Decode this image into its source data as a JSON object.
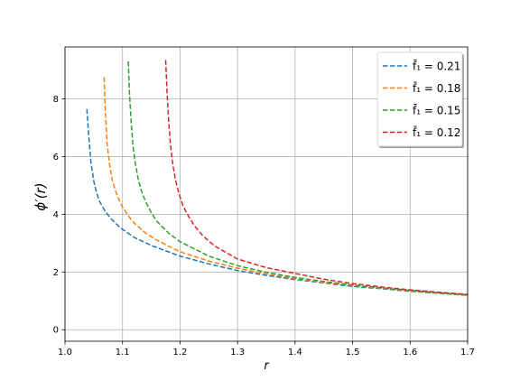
{
  "chart_data": {
    "type": "line",
    "title": "",
    "xlabel": "r",
    "ylabel": "ϕ′(r)",
    "xlim": [
      1.0,
      1.7
    ],
    "ylim": [
      -0.4,
      9.8
    ],
    "xticks": [
      1.0,
      1.1,
      1.2,
      1.3,
      1.4,
      1.5,
      1.6,
      1.7
    ],
    "xtick_labels": [
      "1.0",
      "1.1",
      "1.2",
      "1.3",
      "1.4",
      "1.5",
      "1.6",
      "1.7"
    ],
    "yticks": [
      0,
      2,
      4,
      6,
      8
    ],
    "ytick_labels": [
      "0",
      "2",
      "4",
      "6",
      "8"
    ],
    "grid": true,
    "legend_position": "top-right",
    "line_style": "dashed",
    "series": [
      {
        "name": "f̄₁ = 0.21",
        "color": "#1f77b4",
        "x": [
          1.038,
          1.041,
          1.045,
          1.05,
          1.055,
          1.06,
          1.07,
          1.08,
          1.09,
          1.1,
          1.12,
          1.15,
          1.2,
          1.25,
          1.3,
          1.35,
          1.4,
          1.45,
          1.5,
          1.55,
          1.6,
          1.65,
          1.7
        ],
        "y": [
          7.65,
          6.8,
          5.8,
          5.15,
          4.75,
          4.45,
          4.1,
          3.85,
          3.65,
          3.48,
          3.2,
          2.92,
          2.55,
          2.28,
          2.05,
          1.88,
          1.74,
          1.62,
          1.5,
          1.42,
          1.33,
          1.26,
          1.19
        ]
      },
      {
        "name": "f̄₁ = 0.18",
        "color": "#ff7f0e",
        "x": [
          1.068,
          1.07,
          1.073,
          1.077,
          1.082,
          1.088,
          1.095,
          1.1,
          1.11,
          1.12,
          1.14,
          1.16,
          1.2,
          1.25,
          1.3,
          1.35,
          1.4,
          1.45,
          1.5,
          1.55,
          1.6,
          1.65,
          1.7
        ],
        "y": [
          8.75,
          7.6,
          6.5,
          5.8,
          5.2,
          4.8,
          4.45,
          4.25,
          3.95,
          3.7,
          3.35,
          3.1,
          2.7,
          2.38,
          2.13,
          1.93,
          1.77,
          1.64,
          1.53,
          1.44,
          1.35,
          1.27,
          1.2
        ]
      },
      {
        "name": "f̄₁ = 0.15",
        "color": "#2ca02c",
        "x": [
          1.11,
          1.112,
          1.115,
          1.118,
          1.122,
          1.127,
          1.133,
          1.14,
          1.15,
          1.16,
          1.18,
          1.2,
          1.25,
          1.3,
          1.35,
          1.4,
          1.45,
          1.5,
          1.55,
          1.6,
          1.65,
          1.7
        ],
        "y": [
          9.3,
          8.2,
          7.2,
          6.4,
          5.8,
          5.25,
          4.8,
          4.45,
          4.05,
          3.75,
          3.35,
          3.05,
          2.55,
          2.22,
          1.99,
          1.81,
          1.67,
          1.55,
          1.45,
          1.36,
          1.28,
          1.21
        ]
      },
      {
        "name": "f̄₁ = 0.12",
        "color": "#d62728",
        "x": [
          1.175,
          1.177,
          1.18,
          1.183,
          1.187,
          1.192,
          1.198,
          1.205,
          1.215,
          1.225,
          1.24,
          1.26,
          1.3,
          1.35,
          1.4,
          1.45,
          1.5,
          1.55,
          1.6,
          1.65,
          1.7
        ],
        "y": [
          9.35,
          8.4,
          7.3,
          6.5,
          5.8,
          5.2,
          4.72,
          4.3,
          3.92,
          3.6,
          3.25,
          2.9,
          2.45,
          2.15,
          1.95,
          1.75,
          1.6,
          1.48,
          1.38,
          1.3,
          1.22
        ]
      }
    ]
  }
}
